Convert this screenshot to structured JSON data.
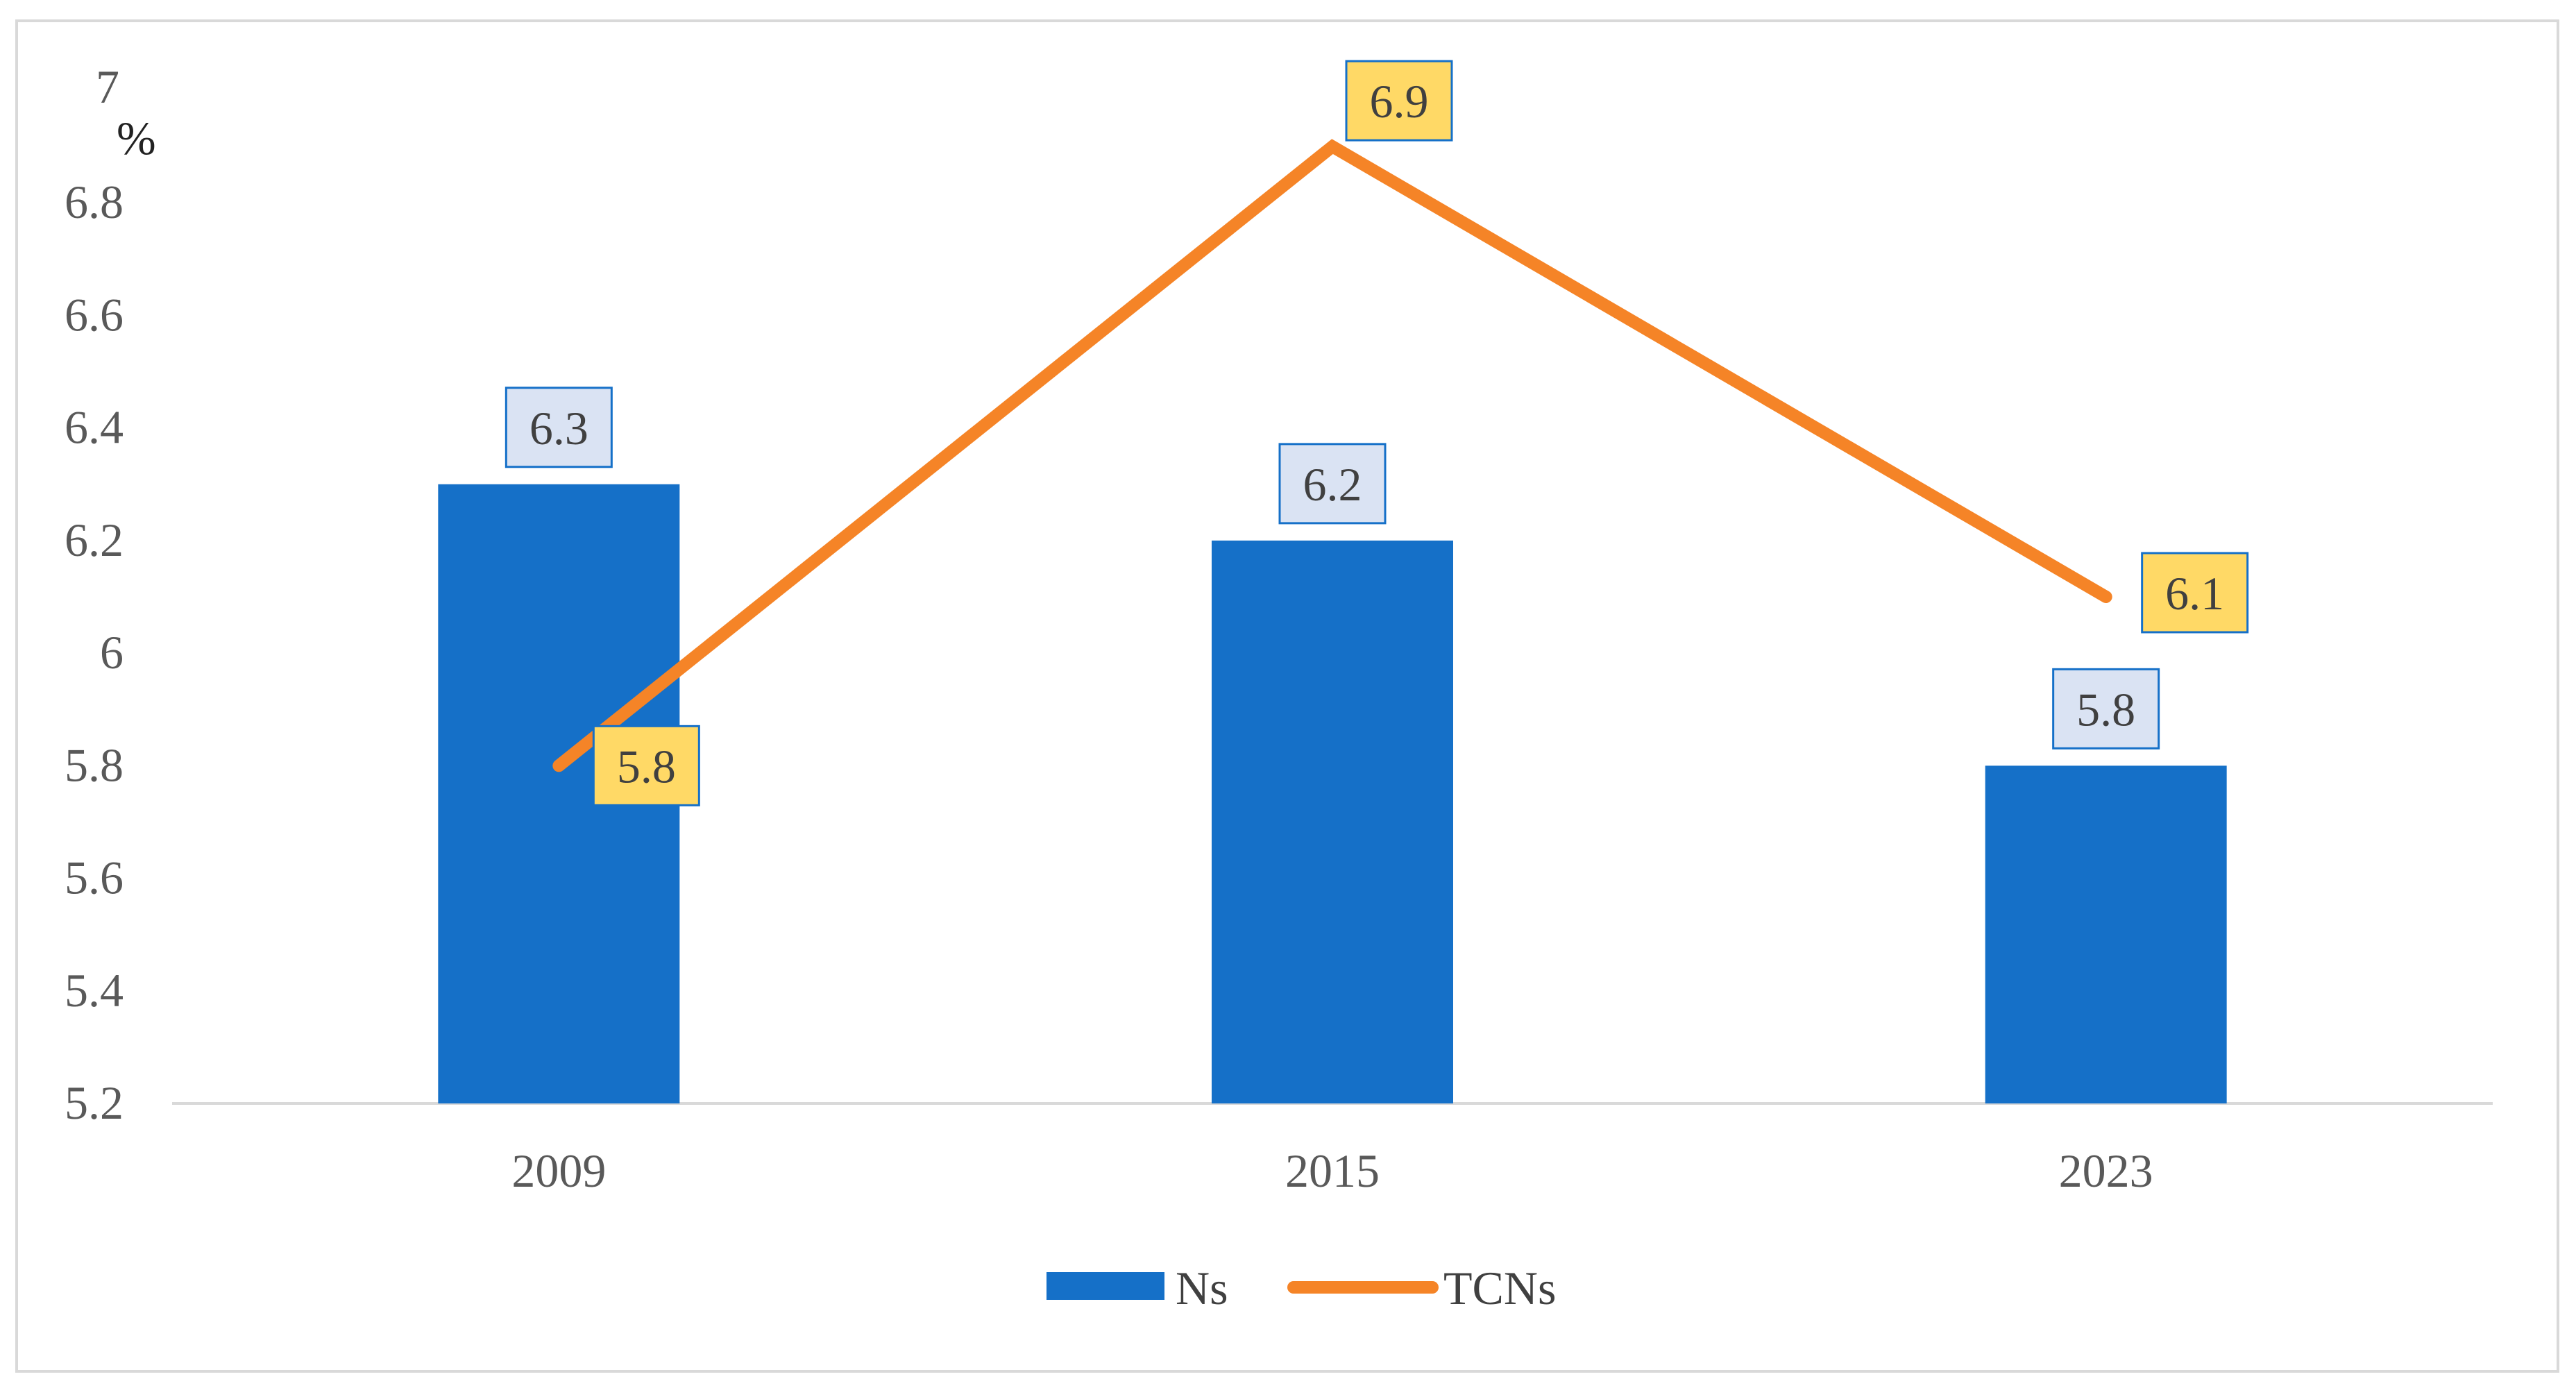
{
  "chart_data": {
    "type": "bar",
    "categories": [
      "2009",
      "2015",
      "2023"
    ],
    "series": [
      {
        "name": "Ns",
        "type": "bar",
        "color": "#1570c8",
        "values": [
          6.3,
          6.2,
          5.8
        ]
      },
      {
        "name": "TCNs",
        "type": "line",
        "color": "#f58427",
        "values": [
          5.8,
          6.9,
          6.1
        ]
      }
    ],
    "unit_label": "%",
    "ylim": [
      5.2,
      7
    ],
    "yticks": [
      5.2,
      5.4,
      5.6,
      5.8,
      6,
      6.2,
      6.4,
      6.6,
      6.8,
      7
    ],
    "ytick_labels": [
      "5.2",
      "5.4",
      "5.6",
      "5.8",
      "6",
      "6.2",
      "6.4",
      "6.6",
      "6.8",
      "7"
    ],
    "data_labels": {
      "Ns": [
        "6.3",
        "6.2",
        "5.8"
      ],
      "TCNs": [
        "5.8",
        "6.9",
        "6.1"
      ]
    },
    "legend_position": "bottom",
    "grid": false
  }
}
